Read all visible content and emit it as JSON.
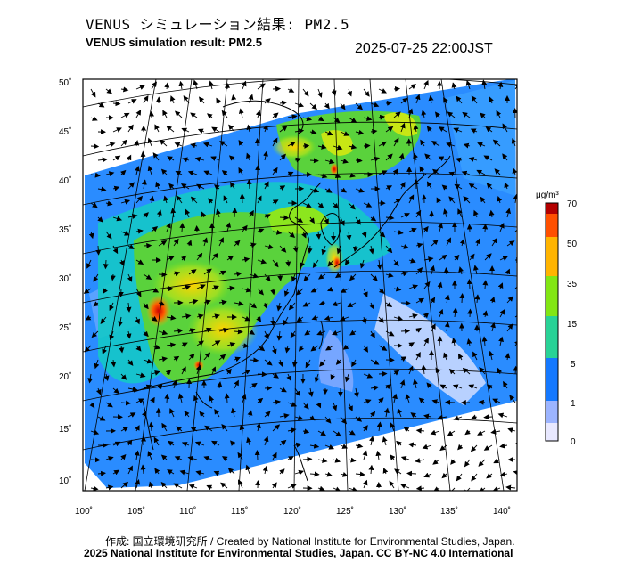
{
  "header": {
    "title_jp": "VENUS シミュレーション結果: PM2.5",
    "title_en": "VENUS simulation result: PM2.5",
    "timestamp": "2025-07-25 22:00JST"
  },
  "map": {
    "lat_labels": [
      "50˚",
      "45˚",
      "40˚",
      "35˚",
      "30˚",
      "25˚",
      "20˚",
      "15˚",
      "10˚"
    ],
    "lon_labels": [
      "100˚",
      "105˚",
      "110˚",
      "115˚",
      "120˚",
      "125˚",
      "130˚",
      "135˚",
      "140˚"
    ],
    "variable": "PM2.5",
    "layers": [
      "pm25-concentration",
      "wind-vectors",
      "coastlines",
      "graticule"
    ]
  },
  "legend": {
    "unit": "μg/m³",
    "ticks": [
      "70",
      "50",
      "35",
      "15",
      "5",
      "1",
      "0"
    ],
    "colors": [
      "#b40000",
      "#ff5000",
      "#ffd200",
      "#82e614",
      "#00c8a0",
      "#1478ff",
      "#dcdcff"
    ]
  },
  "footer": {
    "credit_jp": "作成: 国立環境研究所 / Created by National Institute for Environmental Studies, Japan.",
    "copyright": "2025 National Institute for Environmental Studies, Japan. CC BY-NC 4.0 International"
  }
}
